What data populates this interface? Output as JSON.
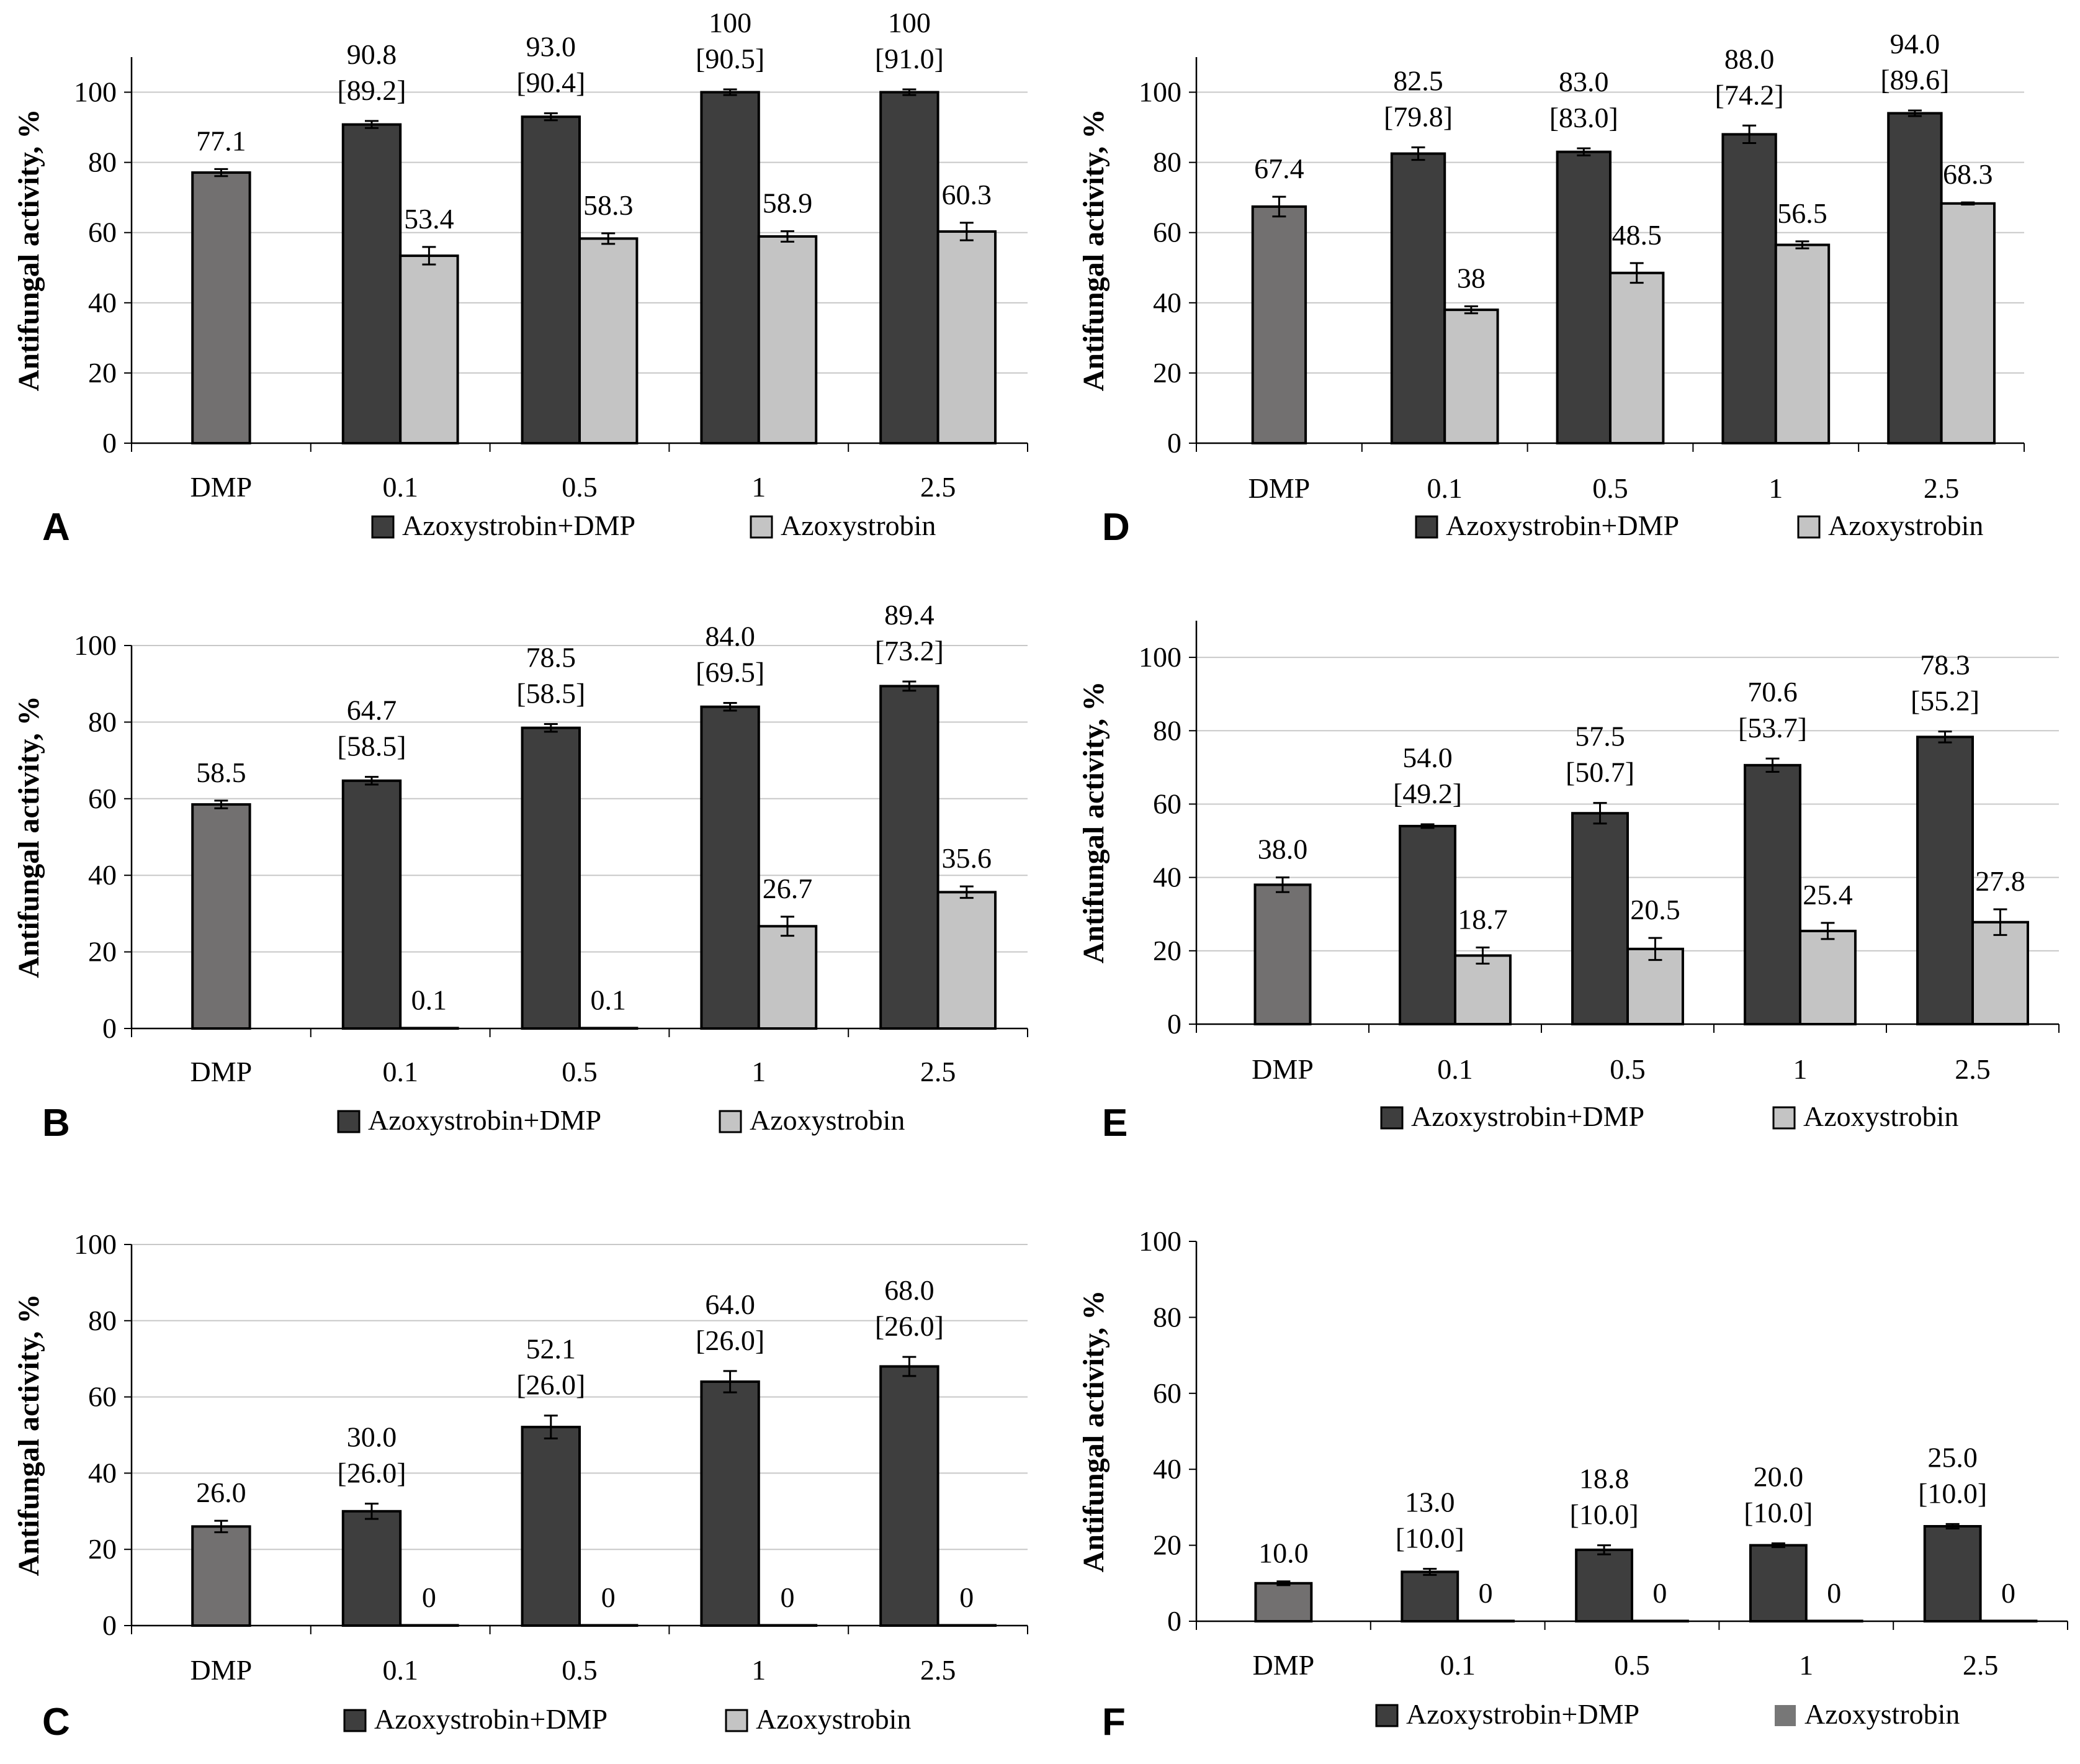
{
  "figure": {
    "colors": {
      "dmp": "#727070",
      "combo": "#3e3e3e",
      "azoxy": "#c4c4c4",
      "azoxy_alt": "#777777",
      "grid": "#c8c8c8",
      "axis": "#000000"
    }
  },
  "chart_data": [
    {
      "panel": "A",
      "type": "bar",
      "ylabel": "Antifungal activity, %",
      "ylim": [
        0,
        110
      ],
      "yticks": [
        "0",
        "20",
        "40",
        "60",
        "80",
        "100"
      ],
      "grid": true,
      "categories": [
        "DMP",
        "0.1",
        "0.5",
        "1",
        "2.5"
      ],
      "dmp": {
        "value": 77.1,
        "error": 1.0,
        "label": "77.1"
      },
      "combo": {
        "name": "Azoxystrobin+DMP",
        "values": [
          90.8,
          93.0,
          100,
          100
        ],
        "errors": [
          1.0,
          1.0,
          0.8,
          0.8
        ],
        "labels": [
          "90.8",
          "93.0",
          "100",
          "100"
        ],
        "brackets": [
          "[89.2]",
          "[90.4]",
          "[90.5]",
          "[91.0]"
        ]
      },
      "azoxy": {
        "name": "Azoxystrobin",
        "values": [
          53.4,
          58.3,
          58.9,
          60.3
        ],
        "errors": [
          2.5,
          1.5,
          1.5,
          2.5
        ],
        "labels": [
          "53.4",
          "58.3",
          "58.9",
          "60.3"
        ]
      },
      "legend": {
        "combo": "Azoxystrobin+DMP",
        "azoxy": "Azoxystrobin",
        "position": "bottom"
      }
    },
    {
      "panel": "B",
      "type": "bar",
      "ylabel": "Antifungal activity, %",
      "ylim": [
        0,
        100
      ],
      "yticks": [
        "0",
        "20",
        "40",
        "60",
        "80",
        "100"
      ],
      "grid": true,
      "categories": [
        "DMP",
        "0.1",
        "0.5",
        "1",
        "2.5"
      ],
      "dmp": {
        "value": 58.5,
        "error": 1.0,
        "label": "58.5"
      },
      "combo": {
        "name": "Azoxystrobin+DMP",
        "values": [
          64.7,
          78.5,
          84.0,
          89.4
        ],
        "errors": [
          1.0,
          1.0,
          1.0,
          1.2
        ],
        "labels": [
          "64.7",
          "78.5",
          "84.0",
          "89.4"
        ],
        "brackets": [
          "[58.5]",
          "[58.5]",
          "[69.5]",
          "[73.2]"
        ]
      },
      "azoxy": {
        "name": "Azoxystrobin",
        "values": [
          0.1,
          0.1,
          26.7,
          35.6
        ],
        "errors": [
          0,
          0,
          2.5,
          1.5
        ],
        "labels": [
          "0.1",
          "0.1",
          "26.7",
          "35.6"
        ]
      },
      "legend": {
        "combo": "Azoxystrobin+DMP",
        "azoxy": "Azoxystrobin",
        "position": "bottom"
      }
    },
    {
      "panel": "C",
      "type": "bar",
      "ylabel": "Antifungal activity, %",
      "ylim": [
        0,
        100
      ],
      "yticks": [
        "0",
        "20",
        "40",
        "60",
        "80",
        "100"
      ],
      "grid": true,
      "categories": [
        "DMP",
        "0.1",
        "0.5",
        "1",
        "2.5"
      ],
      "dmp": {
        "value": 26.0,
        "error": 1.5,
        "label": "26.0"
      },
      "combo": {
        "name": "Azoxystrobin+DMP",
        "values": [
          30.0,
          52.1,
          64.0,
          68.0
        ],
        "errors": [
          2.0,
          3.0,
          2.8,
          2.5
        ],
        "labels": [
          "30.0",
          "52.1",
          "64.0",
          "68.0"
        ],
        "brackets": [
          "[26.0]",
          "[26.0]",
          "[26.0]",
          "[26.0]"
        ]
      },
      "azoxy": {
        "name": "Azoxystrobin",
        "values": [
          0,
          0,
          0,
          0
        ],
        "errors": [
          0,
          0,
          0,
          0
        ],
        "labels": [
          "0",
          "0",
          "0",
          "0"
        ]
      },
      "legend": {
        "combo": "Azoxystrobin+DMP",
        "azoxy": "Azoxystrobin",
        "position": "bottom"
      }
    },
    {
      "panel": "D",
      "type": "bar",
      "ylabel": "Antifungal activity, %",
      "ylim": [
        0,
        110
      ],
      "yticks": [
        "0",
        "20",
        "40",
        "60",
        "80",
        "100"
      ],
      "grid": true,
      "categories": [
        "DMP",
        "0.1",
        "0.5",
        "1",
        "2.5"
      ],
      "dmp": {
        "value": 67.4,
        "error": 2.8,
        "label": "67.4"
      },
      "combo": {
        "name": "Azoxystrobin+DMP",
        "values": [
          82.5,
          83.0,
          88.0,
          94.0
        ],
        "errors": [
          1.8,
          1.0,
          2.5,
          0.8
        ],
        "labels": [
          "82.5",
          "83.0",
          "88.0",
          "94.0"
        ],
        "brackets": [
          "[79.8]",
          "[83.0]",
          "[74.2]",
          "[89.6]"
        ]
      },
      "azoxy": {
        "name": "Azoxystrobin",
        "values": [
          38,
          48.5,
          56.5,
          68.3
        ],
        "errors": [
          1.0,
          2.8,
          1.0,
          0.3
        ],
        "labels": [
          "38",
          "48.5",
          "56.5",
          "68.3"
        ]
      },
      "legend": {
        "combo": "Azoxystrobin+DMP",
        "azoxy": "Azoxystrobin",
        "position": "bottom"
      }
    },
    {
      "panel": "E",
      "type": "bar",
      "ylabel": "Antifungal activity, %",
      "ylim": [
        0,
        110
      ],
      "yticks": [
        "0",
        "20",
        "40",
        "60",
        "80",
        "100"
      ],
      "grid": true,
      "categories": [
        "DMP",
        "0.1",
        "0.5",
        "1",
        "2.5"
      ],
      "dmp": {
        "value": 38.0,
        "error": 2.0,
        "label": "38.0"
      },
      "combo": {
        "name": "Azoxystrobin+DMP",
        "values": [
          54.0,
          57.5,
          70.6,
          78.3
        ],
        "errors": [
          0.5,
          2.8,
          1.8,
          1.5
        ],
        "labels": [
          "54.0",
          "57.5",
          "70.6",
          "78.3"
        ],
        "brackets": [
          "[49.2]",
          "[50.7]",
          "[53.7]",
          "[55.2]"
        ]
      },
      "azoxy": {
        "name": "Azoxystrobin",
        "values": [
          18.7,
          20.5,
          25.4,
          27.8
        ],
        "errors": [
          2.2,
          3.0,
          2.2,
          3.5
        ],
        "labels": [
          "18.7",
          "20.5",
          "25.4",
          "27.8"
        ]
      },
      "legend": {
        "combo": "Azoxystrobin+DMP",
        "azoxy": "Azoxystrobin",
        "position": "bottom"
      }
    },
    {
      "panel": "F",
      "type": "bar",
      "ylabel": "Antifungal activity, %",
      "ylim": [
        0,
        100
      ],
      "yticks": [
        "0",
        "20",
        "40",
        "60",
        "80",
        "100"
      ],
      "grid": false,
      "categories": [
        "DMP",
        "0.1",
        "0.5",
        "1",
        "2.5"
      ],
      "dmp": {
        "value": 10.0,
        "error": 0.5,
        "label": "10.0"
      },
      "combo": {
        "name": "Azoxystrobin+DMP",
        "values": [
          13.0,
          18.8,
          20.0,
          25.0
        ],
        "errors": [
          0.8,
          1.2,
          0.5,
          0.6
        ],
        "labels": [
          "13.0",
          "18.8",
          "20.0",
          "25.0"
        ],
        "brackets": [
          "[10.0]",
          "[10.0]",
          "[10.0]",
          "[10.0]"
        ]
      },
      "azoxy": {
        "name": "Azoxystrobin",
        "values": [
          0,
          0,
          0,
          0
        ],
        "errors": [
          0,
          0,
          0,
          0
        ],
        "labels": [
          "0",
          "0",
          "0",
          "0"
        ]
      },
      "legend": {
        "combo": "Azoxystrobin+DMP",
        "azoxy": "Azoxystrobin",
        "position": "bottom",
        "azoxy_swatch": "alt"
      }
    }
  ]
}
